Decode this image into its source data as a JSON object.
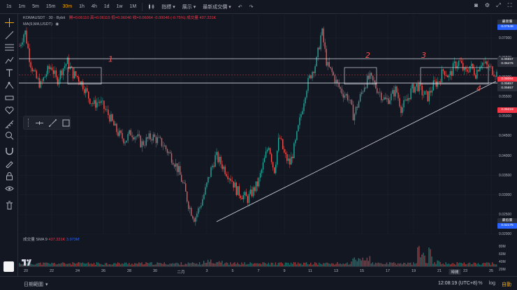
{
  "timeframes": [
    "1s",
    "1m",
    "5m",
    "15m",
    "30m",
    "1h",
    "4h",
    "1d",
    "1w",
    "1M"
  ],
  "active_timeframe": "30m",
  "toolbar_menu": {
    "indicators": "指標",
    "display": "展示",
    "latest_trade": "最新成交價"
  },
  "legend": {
    "symbol": "KOMAUSDT · 30 · Bybit",
    "ohlc": "開=0.06110  高=0.06115  低=0.06040  收=0.06064  -0.00046 (-0.75%)  成交量 437.331K",
    "sma_label": "MA(9,MA,USDT)"
  },
  "volume_legend": {
    "label": "成交量 SMA 9",
    "val1": "437.331K",
    "val2": "3.973M"
  },
  "price_labels": [
    "0.07000",
    "0.06500",
    "0.06000",
    "0.05500",
    "0.05000",
    "0.04500",
    "0.04000",
    "0.03500",
    "0.03000",
    "0.02500",
    "0.02000"
  ],
  "price_tags": [
    {
      "text": "最高價",
      "color": "#2a2e39"
    },
    {
      "text": "0.07548",
      "color": "#2962ff"
    },
    {
      "text": "0.06557",
      "color": "#2a2e39"
    },
    {
      "text": "0.06476",
      "color": "#2a2e39"
    },
    {
      "text": "0.06064",
      "color": "#f23645"
    },
    {
      "text": "0.05857",
      "color": "#2a2e39"
    },
    {
      "text": "0.05857",
      "color": "#2a2e39"
    },
    {
      "text": "0.05219",
      "color": "#f23645"
    },
    {
      "text": "最低價",
      "color": "#2a2e39"
    },
    {
      "text": "0.02175",
      "color": "#2962ff"
    }
  ],
  "vol_scale": [
    "80M",
    "60M",
    "40M",
    "20M"
  ],
  "time_labels": [
    "20",
    "22",
    "24",
    "26",
    "28",
    "30",
    "二月",
    "3",
    "5",
    "7",
    "9",
    "11",
    "13",
    "15",
    "17",
    "19",
    "21",
    "23",
    "25"
  ],
  "time_highlight": "時間",
  "bottom": {
    "range_label": "日期範圍",
    "clock": "12:08:19 (UTC+8)",
    "percent": "%",
    "log": "log",
    "auto": "自動"
  },
  "annotations": [
    "1",
    "2",
    "3",
    "4"
  ],
  "chart_data": {
    "type": "candlestick",
    "symbol": "KOMAUSDT",
    "interval": "30m",
    "exchange": "Bybit",
    "ylim": [
      0.02,
      0.076
    ],
    "last": 0.06064,
    "high": 0.07548,
    "low": 0.02175,
    "horizontal_levels": [
      0.06476,
      0.05857
    ],
    "path": [
      [
        0,
        0.068
      ],
      [
        1,
        0.072
      ],
      [
        2,
        0.064
      ],
      [
        3,
        0.06
      ],
      [
        4,
        0.058
      ],
      [
        5,
        0.061
      ],
      [
        6,
        0.063
      ],
      [
        7,
        0.059
      ],
      [
        8,
        0.062
      ],
      [
        9,
        0.064
      ],
      [
        10,
        0.061
      ],
      [
        11,
        0.06
      ],
      [
        12,
        0.058
      ],
      [
        13,
        0.055
      ],
      [
        14,
        0.053
      ],
      [
        15,
        0.054
      ],
      [
        16,
        0.052
      ],
      [
        17,
        0.05
      ],
      [
        18,
        0.047
      ],
      [
        19,
        0.045
      ],
      [
        20,
        0.044
      ],
      [
        21,
        0.046
      ],
      [
        22,
        0.045
      ],
      [
        23,
        0.043
      ],
      [
        24,
        0.044
      ],
      [
        25,
        0.045
      ],
      [
        26,
        0.044
      ],
      [
        27,
        0.043
      ],
      [
        28,
        0.041
      ],
      [
        29,
        0.039
      ],
      [
        30,
        0.036
      ],
      [
        31,
        0.032
      ],
      [
        32,
        0.027
      ],
      [
        33,
        0.024
      ],
      [
        34,
        0.027
      ],
      [
        35,
        0.031
      ],
      [
        36,
        0.036
      ],
      [
        37,
        0.04
      ],
      [
        38,
        0.038
      ],
      [
        39,
        0.036
      ],
      [
        40,
        0.034
      ],
      [
        41,
        0.031
      ],
      [
        42,
        0.03
      ],
      [
        43,
        0.029
      ],
      [
        44,
        0.031
      ],
      [
        45,
        0.033
      ],
      [
        46,
        0.038
      ],
      [
        47,
        0.043
      ],
      [
        48,
        0.036
      ],
      [
        49,
        0.045
      ],
      [
        50,
        0.04
      ],
      [
        51,
        0.038
      ],
      [
        52,
        0.043
      ],
      [
        53,
        0.05
      ],
      [
        54,
        0.057
      ],
      [
        55,
        0.061
      ],
      [
        56,
        0.064
      ],
      [
        57,
        0.072
      ],
      [
        58,
        0.063
      ],
      [
        59,
        0.061
      ],
      [
        60,
        0.058
      ],
      [
        61,
        0.056
      ],
      [
        62,
        0.055
      ],
      [
        63,
        0.05
      ],
      [
        64,
        0.054
      ],
      [
        65,
        0.058
      ],
      [
        66,
        0.06
      ],
      [
        67,
        0.058
      ],
      [
        68,
        0.056
      ],
      [
        69,
        0.054
      ],
      [
        70,
        0.055
      ],
      [
        71,
        0.057
      ],
      [
        72,
        0.052
      ],
      [
        73,
        0.054
      ],
      [
        74,
        0.057
      ],
      [
        75,
        0.058
      ],
      [
        76,
        0.056
      ],
      [
        77,
        0.055
      ],
      [
        78,
        0.058
      ],
      [
        79,
        0.059
      ],
      [
        80,
        0.062
      ],
      [
        81,
        0.06
      ],
      [
        82,
        0.063
      ],
      [
        83,
        0.064
      ],
      [
        84,
        0.061
      ],
      [
        85,
        0.063
      ],
      [
        86,
        0.061
      ],
      [
        87,
        0.064
      ],
      [
        88,
        0.063
      ],
      [
        89,
        0.062
      ],
      [
        90,
        0.061
      ]
    ]
  }
}
